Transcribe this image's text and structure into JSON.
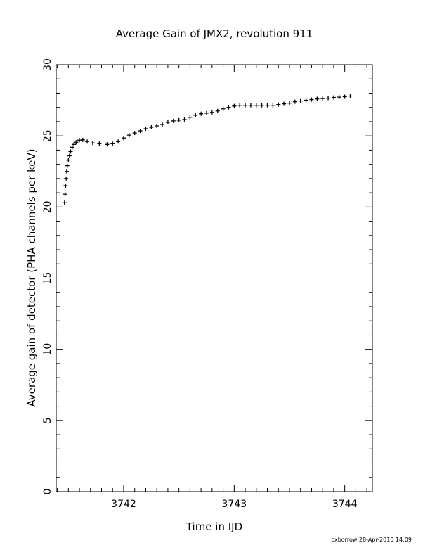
{
  "chart_data": {
    "type": "scatter",
    "title": "Average Gain of JMX2, revolution 911",
    "xlabel": "Time in IJD",
    "ylabel": "Average gain of detector (PHA channels per keV)",
    "xlim": [
      3741.39,
      3744.25
    ],
    "ylim": [
      0,
      30
    ],
    "xticks": [
      3742,
      3743,
      3744
    ],
    "yticks": [
      0,
      5,
      10,
      15,
      20,
      25,
      30
    ],
    "marker": "plus",
    "color": "#000000",
    "series": [
      {
        "x": [
          3741.465,
          3741.47,
          3741.475,
          3741.48,
          3741.485,
          3741.49,
          3741.5,
          3741.51,
          3741.52,
          3741.535,
          3741.55,
          3741.57,
          3741.6,
          3741.63,
          3741.67,
          3741.72,
          3741.78,
          3741.85,
          3741.9,
          3741.95,
          3742.0,
          3742.05,
          3742.1,
          3742.15,
          3742.2,
          3742.25,
          3742.3,
          3742.35,
          3742.4,
          3742.45,
          3742.5,
          3742.55,
          3742.6,
          3742.65,
          3742.7,
          3742.75,
          3742.8,
          3742.85,
          3742.9,
          3742.95,
          3743.0,
          3743.05,
          3743.1,
          3743.15,
          3743.2,
          3743.25,
          3743.3,
          3743.35,
          3743.4,
          3743.45,
          3743.5,
          3743.55,
          3743.6,
          3743.65,
          3743.7,
          3743.75,
          3743.8,
          3743.85,
          3743.9,
          3743.95,
          3744.0,
          3744.05
        ],
        "y": [
          20.3,
          20.9,
          21.5,
          22.0,
          22.5,
          22.9,
          23.3,
          23.6,
          23.9,
          24.2,
          24.4,
          24.55,
          24.7,
          24.72,
          24.6,
          24.5,
          24.45,
          24.4,
          24.45,
          24.6,
          24.85,
          25.05,
          25.2,
          25.35,
          25.5,
          25.6,
          25.7,
          25.8,
          25.95,
          26.05,
          26.1,
          26.15,
          26.3,
          26.45,
          26.55,
          26.6,
          26.65,
          26.75,
          26.9,
          27.0,
          27.1,
          27.15,
          27.15,
          27.15,
          27.15,
          27.15,
          27.15,
          27.15,
          27.2,
          27.25,
          27.3,
          27.4,
          27.45,
          27.5,
          27.55,
          27.6,
          27.62,
          27.65,
          27.7,
          27.72,
          27.75,
          27.8
        ]
      }
    ]
  },
  "footer": "oxborrow 28-Apr-2010 14:09"
}
